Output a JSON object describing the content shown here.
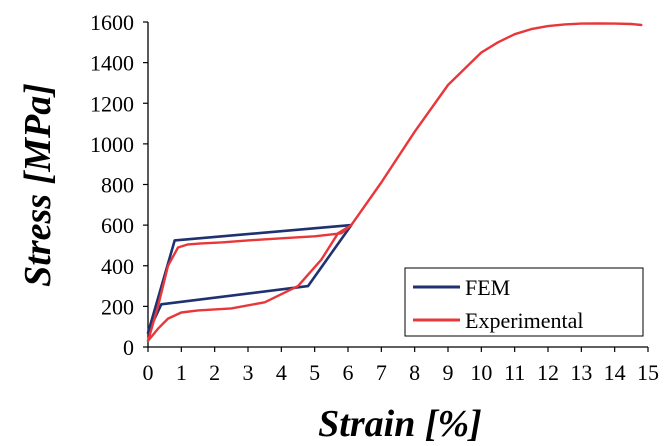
{
  "chart_data": {
    "type": "line",
    "title": "",
    "xlabel": "Strain [%]",
    "ylabel": "Stress [MPa]",
    "xlim": [
      0,
      15
    ],
    "ylim": [
      0,
      1600
    ],
    "xticks": [
      "0",
      "1",
      "2",
      "3",
      "4",
      "5",
      "6",
      "7",
      "8",
      "9",
      "10",
      "11",
      "12",
      "13",
      "14",
      "15"
    ],
    "yticks": [
      "0",
      "200",
      "400",
      "600",
      "800",
      "1000",
      "1200",
      "1400",
      "1600"
    ],
    "grid": false,
    "legend_position": "bottom-right",
    "series": [
      {
        "name": "FEM",
        "color": "#1f3170",
        "x": [
          0,
          0.8,
          6.1,
          4.8,
          0.4,
          0
        ],
        "y": [
          70,
          525,
          600,
          300,
          210,
          70
        ]
      },
      {
        "name": "Experimental",
        "color": "#e8373a",
        "x": [
          0,
          0.3,
          0.6,
          0.9,
          1.2,
          1.6,
          2.2,
          3.0,
          4.0,
          5.0,
          5.8,
          6.1,
          7.0,
          8.0,
          9.0,
          10.0,
          10.5,
          11.0,
          11.5,
          12.0,
          12.5,
          13.0,
          13.5,
          14.0,
          14.5,
          14.8,
          14.5,
          14.0,
          13.5,
          13.0,
          12.5,
          12.0,
          11.5,
          11.0,
          10.5,
          10.0,
          9.0,
          8.0,
          7.0,
          6.1,
          5.7,
          5.2,
          4.5,
          3.5,
          2.5,
          1.5,
          1.0,
          0.6,
          0.3,
          0
        ],
        "y": [
          30,
          200,
          400,
          490,
          505,
          510,
          515,
          525,
          535,
          545,
          560,
          600,
          810,
          1060,
          1290,
          1450,
          1500,
          1540,
          1565,
          1580,
          1588,
          1592,
          1593,
          1592,
          1590,
          1585,
          1590,
          1592,
          1593,
          1592,
          1588,
          1580,
          1565,
          1540,
          1500,
          1450,
          1290,
          1060,
          810,
          600,
          560,
          430,
          300,
          220,
          190,
          180,
          170,
          140,
          90,
          30
        ]
      }
    ]
  }
}
